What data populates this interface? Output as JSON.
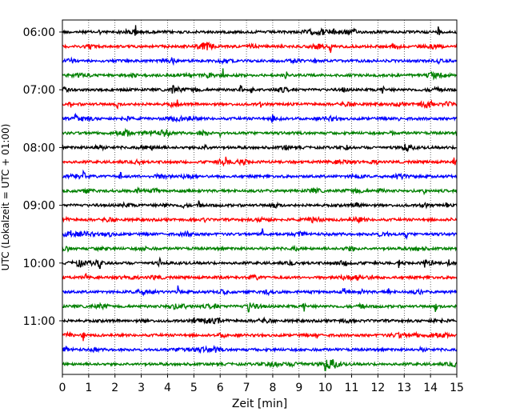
{
  "chart_data": {
    "type": "line",
    "title": "",
    "xlabel": "Zeit  [min]",
    "ylabel": "UTC (Lokalzeit = UTC + 01:00)",
    "xlim": [
      0,
      15
    ],
    "x_ticks": [
      0,
      1,
      2,
      3,
      4,
      5,
      6,
      7,
      8,
      9,
      10,
      11,
      12,
      13,
      14,
      15
    ],
    "x_grid": "vertical dotted",
    "y_tick_labels": [
      "06:00",
      "07:00",
      "08:00",
      "09:00",
      "10:00",
      "11:00"
    ],
    "trace_interval_min": 15,
    "trace_colors": [
      "#000000",
      "#ff0000",
      "#0000ff",
      "#008000"
    ],
    "traces": [
      {
        "start": "06:00",
        "color": "#000000",
        "spikes": [
          [
            1.4,
            0.5
          ],
          [
            2.8,
            0.9
          ],
          [
            14.3,
            1.0
          ]
        ]
      },
      {
        "start": "06:15",
        "color": "#ff0000",
        "spikes": [
          [
            10.2,
            1.0
          ],
          [
            12.6,
            0.9
          ],
          [
            12.8,
            0.8
          ]
        ]
      },
      {
        "start": "06:30",
        "color": "#0000ff",
        "spikes": [
          [
            3.8,
            0.4
          ],
          [
            9.6,
            0.4
          ]
        ]
      },
      {
        "start": "06:45",
        "color": "#008000",
        "spikes": [
          [
            6.1,
            0.9
          ],
          [
            8.5,
            0.6
          ],
          [
            14.2,
            0.6
          ]
        ]
      },
      {
        "start": "07:00",
        "color": "#000000",
        "spikes": [
          [
            4.2,
            1.0
          ],
          [
            6.8,
            1.0
          ],
          [
            7.2,
            0.9
          ],
          [
            12.2,
            0.8
          ]
        ]
      },
      {
        "start": "07:15",
        "color": "#ff0000",
        "spikes": [
          [
            0.3,
            0.8
          ],
          [
            2.1,
            0.9
          ],
          [
            4.4,
            0.7
          ],
          [
            7.5,
            1.0
          ],
          [
            14.0,
            0.5
          ]
        ]
      },
      {
        "start": "07:30",
        "color": "#0000ff",
        "spikes": [
          [
            0.5,
            1.0
          ],
          [
            8.0,
            0.7
          ],
          [
            12.8,
            0.6
          ]
        ]
      },
      {
        "start": "07:45",
        "color": "#008000",
        "spikes": [
          [
            6.0,
            0.5
          ],
          [
            12.5,
            0.8
          ]
        ]
      },
      {
        "start": "08:00",
        "color": "#000000",
        "spikes": [
          [
            1.3,
            0.5
          ],
          [
            10.8,
            1.0
          ]
        ]
      },
      {
        "start": "08:15",
        "color": "#ff0000",
        "spikes": [
          [
            6.2,
            0.4
          ],
          [
            14.9,
            0.6
          ]
        ]
      },
      {
        "start": "08:30",
        "color": "#0000ff",
        "spikes": [
          [
            0.8,
            0.9
          ],
          [
            2.2,
            0.9
          ]
        ]
      },
      {
        "start": "08:45",
        "color": "#008000",
        "spikes": [
          [
            13.8,
            0.6
          ]
        ]
      },
      {
        "start": "09:00",
        "color": "#000000",
        "spikes": [
          [
            5.2,
            1.0
          ],
          [
            14.6,
            0.5
          ]
        ]
      },
      {
        "start": "09:15",
        "color": "#ff0000",
        "spikes": [
          [
            5.4,
            0.5
          ],
          [
            14.8,
            0.6
          ]
        ]
      },
      {
        "start": "09:30",
        "color": "#0000ff",
        "spikes": [
          [
            0.3,
            0.6
          ],
          [
            7.6,
            0.8
          ],
          [
            13.1,
            1.0
          ]
        ]
      },
      {
        "start": "09:45",
        "color": "#008000",
        "spikes": [
          [
            1.5,
            0.5
          ]
        ]
      },
      {
        "start": "10:00",
        "color": "#000000",
        "spikes": [
          [
            1.4,
            0.9
          ],
          [
            3.7,
            0.9
          ],
          [
            10.9,
            0.8
          ],
          [
            12.8,
            0.7
          ],
          [
            13.8,
            0.8
          ],
          [
            14.7,
            0.8
          ]
        ]
      },
      {
        "start": "10:15",
        "color": "#ff0000",
        "spikes": [
          [
            0.9,
            0.7
          ],
          [
            6.0,
            0.5
          ]
        ]
      },
      {
        "start": "10:30",
        "color": "#0000ff",
        "spikes": [
          [
            4.4,
            0.9
          ],
          [
            10.7,
            0.8
          ],
          [
            12.4,
            0.8
          ]
        ]
      },
      {
        "start": "10:45",
        "color": "#008000",
        "spikes": [
          [
            7.1,
            1.0
          ],
          [
            9.2,
            0.8
          ],
          [
            14.2,
            1.0
          ]
        ]
      },
      {
        "start": "11:00",
        "color": "#000000",
        "spikes": [
          [
            5.0,
            0.3
          ]
        ]
      },
      {
        "start": "11:15",
        "color": "#ff0000",
        "spikes": [
          [
            0.8,
            0.9
          ],
          [
            9.7,
            0.9
          ]
        ]
      },
      {
        "start": "11:30",
        "color": "#0000ff",
        "spikes": [
          [
            7.3,
            0.3
          ]
        ]
      },
      {
        "start": "11:45",
        "color": "#008000",
        "spikes": [
          [
            10.0,
            0.9
          ]
        ]
      }
    ]
  }
}
